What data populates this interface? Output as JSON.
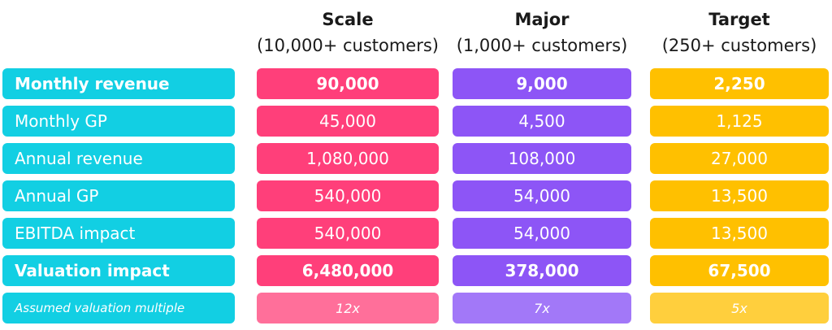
{
  "columns": [
    {
      "title": "Scale",
      "subtitle": "(10,000+ customers)"
    },
    {
      "title": "Major",
      "subtitle": "(1,000+ customers)"
    },
    {
      "title": "Target",
      "subtitle": "(250+ customers)"
    }
  ],
  "rows": [
    {
      "label": "Monthly revenue",
      "values": [
        "90,000",
        "9,000",
        "2,250"
      ]
    },
    {
      "label": "Monthly GP",
      "values": [
        "45,000",
        "4,500",
        "1,125"
      ]
    },
    {
      "label": "Annual revenue",
      "values": [
        "1,080,000",
        "108,000",
        "27,000"
      ]
    },
    {
      "label": "Annual GP",
      "values": [
        "540,000",
        "54,000",
        "13,500"
      ]
    },
    {
      "label": "EBITDA impact",
      "values": [
        "540,000",
        "54,000",
        "13,500"
      ]
    },
    {
      "label": "Valuation impact",
      "values": [
        "6,480,000",
        "378,000",
        "67,500"
      ]
    },
    {
      "label": "Assumed valuation multiple",
      "values": [
        "12x",
        "7x",
        "5x"
      ]
    }
  ],
  "colors": {
    "label": "#12cfe3",
    "scale": "#ff3f7a",
    "major": "#8d55f6",
    "target": "#ffc000"
  }
}
